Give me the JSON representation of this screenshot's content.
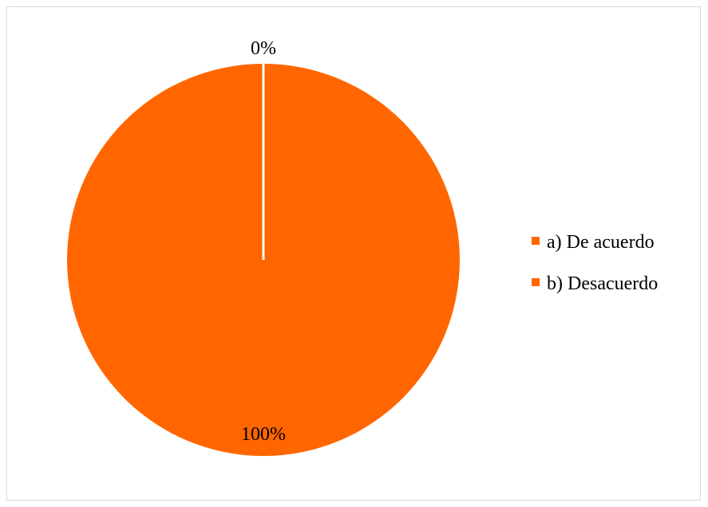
{
  "chart_data": {
    "type": "pie",
    "title": "",
    "categories": [
      "a) De acuerdo",
      "b) Desacuerdo"
    ],
    "values": [
      0,
      100
    ],
    "data_labels": [
      "0%",
      "100%"
    ],
    "colors": [
      "#ff6600",
      "#ff6600"
    ],
    "legend_position": "right"
  }
}
